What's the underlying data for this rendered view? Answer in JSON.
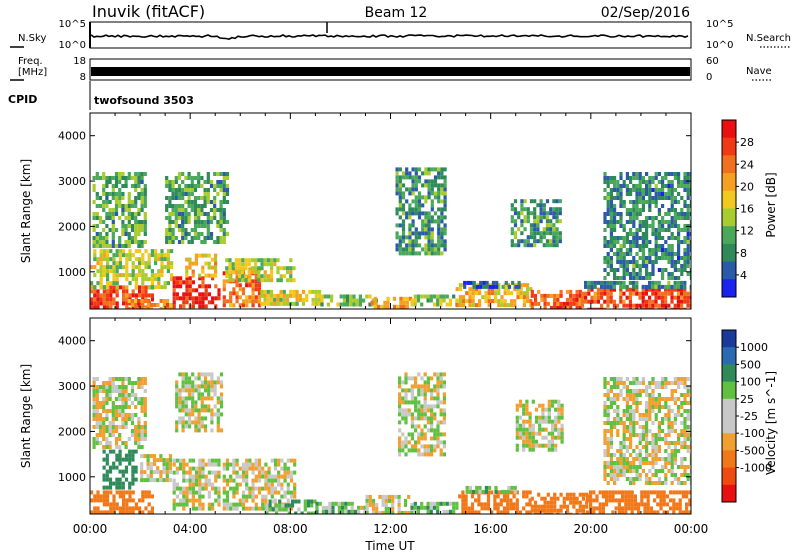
{
  "header": {
    "station": "Inuvik (fitACF)",
    "beam": "Beam 12",
    "date": "02/Sep/2016"
  },
  "summary_panels": {
    "nsky_label": "N.Sky",
    "nsearch_label": "N.Search",
    "left_ticks": [
      "10^5",
      "10^0"
    ],
    "right_ticks": [
      "10^5",
      "10^0"
    ],
    "freq_label_line1": "Freq.",
    "freq_label_line2": "[MHz]",
    "freq_ticks": [
      "18",
      "8"
    ],
    "nave_label": "Nave",
    "nave_ticks": [
      "60",
      "0"
    ],
    "cpid_label": "CPID",
    "cpid_value": "twofsound 3503"
  },
  "colors": {
    "power_scale": [
      "#1a22ee",
      "#2a5aa8",
      "#2f8a5a",
      "#4aa85a",
      "#a8cc30",
      "#f0c820",
      "#f5a020",
      "#f07020",
      "#f03a15",
      "#e81010"
    ],
    "velocity_scale": [
      "#1a3a9a",
      "#2a6ab0",
      "#2f8a5a",
      "#60c040",
      "#c8c8c8",
      "#c8c8c8",
      "#f0a030",
      "#f07818",
      "#f04a10",
      "#e81010"
    ]
  },
  "chart_data": [
    {
      "type": "heatmap",
      "name": "power-panel",
      "xlabel": "",
      "ylabel": "Slant Range [km]",
      "xlim": [
        "00:00",
        "24:00"
      ],
      "ylim": [
        180,
        4500
      ],
      "yticks": [
        1000,
        2000,
        3000,
        4000
      ],
      "colorbar": {
        "label": "Power [dB]",
        "range": [
          0,
          32
        ],
        "ticks": [
          "4",
          "8",
          "12",
          "16",
          "20",
          "24",
          "28"
        ]
      },
      "patches": [
        {
          "t0": 0.0,
          "t1": 2.5,
          "r0": 200,
          "r1": 700,
          "v": 27
        },
        {
          "t0": 0.0,
          "t1": 3.2,
          "r0": 700,
          "r1": 1500,
          "v": 15
        },
        {
          "t0": 0.1,
          "t1": 2.2,
          "r0": 1600,
          "r1": 3200,
          "v": 11
        },
        {
          "t0": 1.5,
          "t1": 3.3,
          "r0": 200,
          "r1": 400,
          "v": 22
        },
        {
          "t0": 3.3,
          "t1": 5.2,
          "r0": 200,
          "r1": 900,
          "v": 29
        },
        {
          "t0": 3.8,
          "t1": 5.0,
          "r0": 900,
          "r1": 1400,
          "v": 18
        },
        {
          "t0": 3.0,
          "t1": 5.5,
          "r0": 1700,
          "r1": 3200,
          "v": 10
        },
        {
          "t0": 5.3,
          "t1": 6.8,
          "r0": 250,
          "r1": 1100,
          "v": 24
        },
        {
          "t0": 5.4,
          "t1": 8.2,
          "r0": 800,
          "r1": 1300,
          "v": 15
        },
        {
          "t0": 6.8,
          "t1": 9.2,
          "r0": 250,
          "r1": 600,
          "v": 17
        },
        {
          "t0": 9.2,
          "t1": 11.5,
          "r0": 250,
          "r1": 500,
          "v": 13
        },
        {
          "t0": 11.2,
          "t1": 12.8,
          "r0": 200,
          "r1": 450,
          "v": 22
        },
        {
          "t0": 12.8,
          "t1": 14.7,
          "r0": 250,
          "r1": 500,
          "v": 14
        },
        {
          "t0": 12.2,
          "t1": 14.2,
          "r0": 1400,
          "r1": 3300,
          "v": 9
        },
        {
          "t0": 14.6,
          "t1": 17.6,
          "r0": 300,
          "r1": 750,
          "v": 19
        },
        {
          "t0": 14.9,
          "t1": 17.2,
          "r0": 700,
          "r1": 800,
          "v": 5
        },
        {
          "t0": 17.6,
          "t1": 19.6,
          "r0": 200,
          "r1": 600,
          "v": 25
        },
        {
          "t0": 19.6,
          "t1": 24.0,
          "r0": 200,
          "r1": 650,
          "v": 27
        },
        {
          "t0": 19.6,
          "t1": 24.0,
          "r0": 650,
          "r1": 800,
          "v": 8
        },
        {
          "t0": 16.8,
          "t1": 18.8,
          "r0": 1600,
          "r1": 2600,
          "v": 9
        },
        {
          "t0": 20.5,
          "t1": 24.0,
          "r0": 900,
          "r1": 3200,
          "v": 8
        }
      ]
    },
    {
      "type": "heatmap",
      "name": "velocity-panel",
      "xlabel": "Time UT",
      "ylabel": "Slant Range [km]",
      "xlim": [
        "00:00",
        "24:00"
      ],
      "xticks": [
        "00:00",
        "04:00",
        "08:00",
        "12:00",
        "16:00",
        "20:00",
        "00:00"
      ],
      "ylim": [
        180,
        4500
      ],
      "yticks": [
        1000,
        2000,
        3000,
        4000
      ],
      "colorbar": {
        "label": "Velocity [m s^-1]",
        "ticks": [
          "1000",
          "500",
          "100",
          "25",
          "-25",
          "-100",
          "-500",
          "-1000"
        ]
      },
      "patches": [
        {
          "t0": 0.0,
          "t1": 2.5,
          "r0": 200,
          "r1": 700,
          "v": -200
        },
        {
          "t0": 0.1,
          "t1": 2.2,
          "r0": 1700,
          "r1": 3200,
          "v": 0
        },
        {
          "t0": 0.5,
          "t1": 1.8,
          "r0": 800,
          "r1": 1600,
          "v": 400
        },
        {
          "t0": 2.0,
          "t1": 3.2,
          "r0": 900,
          "r1": 1500,
          "v": 0
        },
        {
          "t0": 3.3,
          "t1": 5.2,
          "r0": 300,
          "r1": 1400,
          "v": 0
        },
        {
          "t0": 3.4,
          "t1": 5.3,
          "r0": 2000,
          "r1": 3300,
          "v": 0
        },
        {
          "t0": 5.3,
          "t1": 8.2,
          "r0": 300,
          "r1": 1400,
          "v": 0
        },
        {
          "t0": 7.0,
          "t1": 9.0,
          "r0": 200,
          "r1": 500,
          "v": 80
        },
        {
          "t0": 9.0,
          "t1": 11.0,
          "r0": 200,
          "r1": 450,
          "v": 60
        },
        {
          "t0": 11.0,
          "t1": 12.8,
          "r0": 200,
          "r1": 600,
          "v": 0
        },
        {
          "t0": 12.8,
          "t1": 14.7,
          "r0": 200,
          "r1": 450,
          "v": 80
        },
        {
          "t0": 12.3,
          "t1": 14.2,
          "r0": 1500,
          "r1": 3300,
          "v": 0
        },
        {
          "t0": 14.7,
          "t1": 17.6,
          "r0": 250,
          "r1": 700,
          "v": -250
        },
        {
          "t0": 15.0,
          "t1": 17.0,
          "r0": 700,
          "r1": 800,
          "v": 60
        },
        {
          "t0": 17.6,
          "t1": 19.8,
          "r0": 200,
          "r1": 650,
          "v": -300
        },
        {
          "t0": 19.8,
          "t1": 24.0,
          "r0": 200,
          "r1": 700,
          "v": -250
        },
        {
          "t0": 17.0,
          "t1": 18.8,
          "r0": 1600,
          "r1": 2700,
          "v": 0
        },
        {
          "t0": 20.5,
          "t1": 24.0,
          "r0": 900,
          "r1": 3200,
          "v": 0
        }
      ]
    }
  ]
}
